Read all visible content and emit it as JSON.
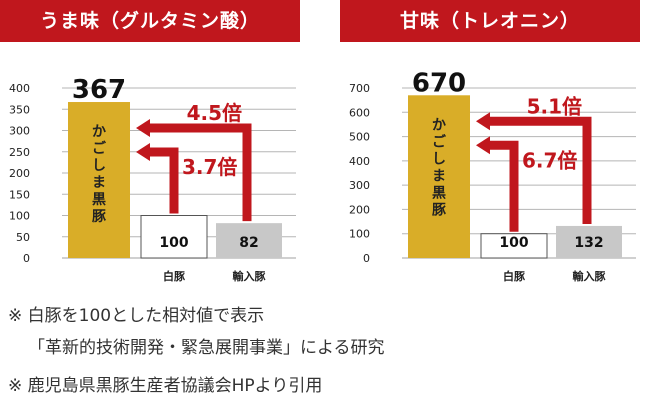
{
  "colors": {
    "header_bg": "#c0171d",
    "arrow": "#c0171d",
    "kagoshima_bar": "#d9ad28",
    "white_bar": "#ffffff",
    "import_bar": "#c8c8c8",
    "grid": "#b5b5b5",
    "text": "#222222"
  },
  "chart_data": [
    {
      "type": "bar",
      "title": "うま味（グルタミン酸）",
      "categories": [
        "かごしま黒豚",
        "白豚",
        "輸入豚"
      ],
      "values": [
        367,
        100,
        82
      ],
      "value_labels": [
        "367",
        "100",
        "82"
      ],
      "ylim": [
        0,
        400
      ],
      "yticks": [
        0,
        50,
        100,
        150,
        200,
        250,
        300,
        350,
        400
      ],
      "grid": true,
      "series": [
        {
          "values": [
            367,
            100,
            82
          ]
        }
      ],
      "annotations": [
        {
          "text": "4.5倍",
          "from": "輸入豚",
          "to": "かごしま黒豚"
        },
        {
          "text": "3.7倍",
          "from": "白豚",
          "to": "かごしま黒豚"
        }
      ]
    },
    {
      "type": "bar",
      "title": "甘味（トレオニン）",
      "categories": [
        "かごしま黒豚",
        "白豚",
        "輸入豚"
      ],
      "values": [
        670,
        100,
        132
      ],
      "value_labels": [
        "670",
        "100",
        "132"
      ],
      "ylim": [
        0,
        700
      ],
      "yticks": [
        0,
        100,
        200,
        300,
        400,
        500,
        600,
        700
      ],
      "grid": true,
      "series": [
        {
          "values": [
            670,
            100,
            132
          ]
        }
      ],
      "annotations": [
        {
          "text": "5.1倍",
          "from": "輸入豚",
          "to": "かごしま黒豚"
        },
        {
          "text": "6.7倍",
          "from": "白豚",
          "to": "かごしま黒豚"
        }
      ]
    }
  ],
  "footnotes": {
    "line1": "※ 白豚を100とした相対値で表示",
    "line2": "「革新的技術開発・緊急展開事業」による研究",
    "line3": "※ 鹿児島県黒豚生産者協議会HPより引用"
  }
}
